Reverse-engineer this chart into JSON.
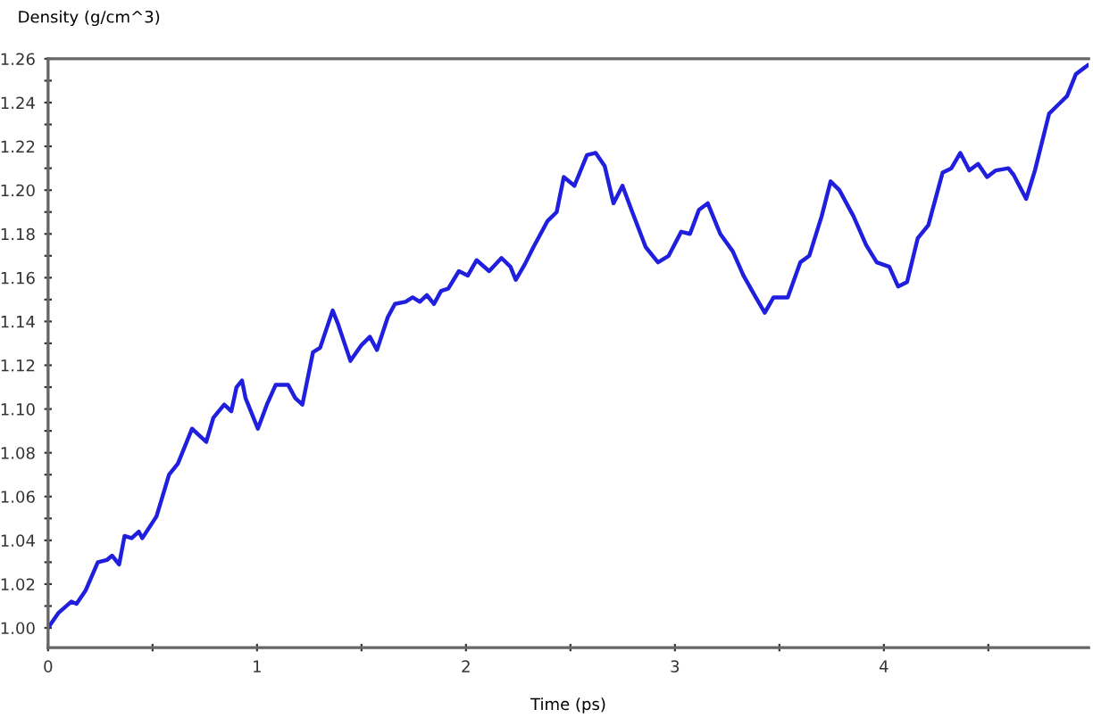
{
  "chart_data": {
    "type": "line",
    "xlabel": "Time (ps)",
    "ylabel": "Density (g/cm^3)",
    "xlim": [
      0,
      4.98
    ],
    "ylim": [
      0.991,
      1.26
    ],
    "xticks": [
      0,
      {
        "value": 0.5,
        "label": null
      },
      1,
      {
        "value": 1.5,
        "label": null
      },
      2,
      {
        "value": 2.5,
        "label": null
      },
      3,
      {
        "value": 3.5,
        "label": null
      },
      4,
      {
        "value": 4.5,
        "label": null
      }
    ],
    "yticks": [
      {
        "value": 1.0,
        "label": "1.00"
      },
      {
        "value": 1.01,
        "label": null
      },
      {
        "value": 1.02,
        "label": "1.02"
      },
      {
        "value": 1.03,
        "label": null
      },
      {
        "value": 1.04,
        "label": "1.04"
      },
      {
        "value": 1.05,
        "label": null
      },
      {
        "value": 1.06,
        "label": "1.06"
      },
      {
        "value": 1.07,
        "label": null
      },
      {
        "value": 1.08,
        "label": "1.08"
      },
      {
        "value": 1.09,
        "label": null
      },
      {
        "value": 1.1,
        "label": "1.10"
      },
      {
        "value": 1.11,
        "label": null
      },
      {
        "value": 1.12,
        "label": "1.12"
      },
      {
        "value": 1.13,
        "label": null
      },
      {
        "value": 1.14,
        "label": "1.14"
      },
      {
        "value": 1.15,
        "label": null
      },
      {
        "value": 1.16,
        "label": "1.16"
      },
      {
        "value": 1.17,
        "label": null
      },
      {
        "value": 1.18,
        "label": "1.18"
      },
      {
        "value": 1.19,
        "label": null
      },
      {
        "value": 1.2,
        "label": "1.20"
      },
      {
        "value": 1.21,
        "label": null
      },
      {
        "value": 1.22,
        "label": "1.22"
      },
      {
        "value": 1.23,
        "label": null
      },
      {
        "value": 1.24,
        "label": "1.24"
      },
      {
        "value": 1.25,
        "label": null
      },
      {
        "value": 1.26,
        "label": "1.26"
      }
    ],
    "grid": false,
    "legend": false,
    "marker": "none",
    "line_style": "solid",
    "series": [
      {
        "color": "#1f1fdd",
        "x": [
          0,
          0.051,
          0.111,
          0.136,
          0.179,
          0.238,
          0.281,
          0.306,
          0.34,
          0.366,
          0.4,
          0.434,
          0.451,
          0.519,
          0.579,
          0.621,
          0.689,
          0.723,
          0.757,
          0.791,
          0.843,
          0.877,
          0.902,
          0.928,
          0.945,
          1.004,
          1.047,
          1.089,
          1.149,
          1.183,
          1.217,
          1.268,
          1.302,
          1.362,
          1.387,
          1.447,
          1.498,
          1.54,
          1.574,
          1.626,
          1.66,
          1.711,
          1.745,
          1.779,
          1.813,
          1.847,
          1.881,
          1.915,
          1.966,
          2.009,
          2.051,
          2.111,
          2.17,
          2.213,
          2.238,
          2.281,
          2.323,
          2.391,
          2.434,
          2.468,
          2.519,
          2.579,
          2.621,
          2.664,
          2.706,
          2.749,
          2.8,
          2.86,
          2.919,
          2.97,
          3.03,
          3.072,
          3.115,
          3.157,
          3.217,
          3.277,
          3.328,
          3.387,
          3.43,
          3.472,
          3.54,
          3.6,
          3.643,
          3.702,
          3.745,
          3.787,
          3.855,
          3.915,
          3.966,
          4.026,
          4.068,
          4.111,
          4.162,
          4.213,
          4.281,
          4.323,
          4.366,
          4.409,
          4.451,
          4.494,
          4.536,
          4.596,
          4.621,
          4.681,
          4.723,
          4.791,
          4.834,
          4.877,
          4.919,
          4.975
        ],
        "values": [
          1.0,
          1.007,
          1.012,
          1.011,
          1.017,
          1.03,
          1.031,
          1.033,
          1.029,
          1.042,
          1.041,
          1.044,
          1.041,
          1.051,
          1.07,
          1.075,
          1.091,
          1.088,
          1.085,
          1.096,
          1.102,
          1.099,
          1.11,
          1.113,
          1.105,
          1.091,
          1.102,
          1.111,
          1.111,
          1.105,
          1.102,
          1.126,
          1.128,
          1.145,
          1.139,
          1.122,
          1.129,
          1.133,
          1.127,
          1.142,
          1.148,
          1.149,
          1.151,
          1.149,
          1.152,
          1.148,
          1.154,
          1.155,
          1.163,
          1.161,
          1.168,
          1.163,
          1.169,
          1.165,
          1.159,
          1.166,
          1.174,
          1.186,
          1.19,
          1.206,
          1.202,
          1.216,
          1.217,
          1.211,
          1.194,
          1.202,
          1.189,
          1.174,
          1.167,
          1.17,
          1.181,
          1.18,
          1.191,
          1.194,
          1.18,
          1.172,
          1.161,
          1.151,
          1.144,
          1.151,
          1.151,
          1.167,
          1.17,
          1.188,
          1.204,
          1.2,
          1.188,
          1.175,
          1.167,
          1.165,
          1.156,
          1.158,
          1.178,
          1.184,
          1.208,
          1.21,
          1.217,
          1.209,
          1.212,
          1.206,
          1.209,
          1.21,
          1.207,
          1.196,
          1.209,
          1.235,
          1.239,
          1.243,
          1.253,
          1.257
        ]
      }
    ]
  }
}
